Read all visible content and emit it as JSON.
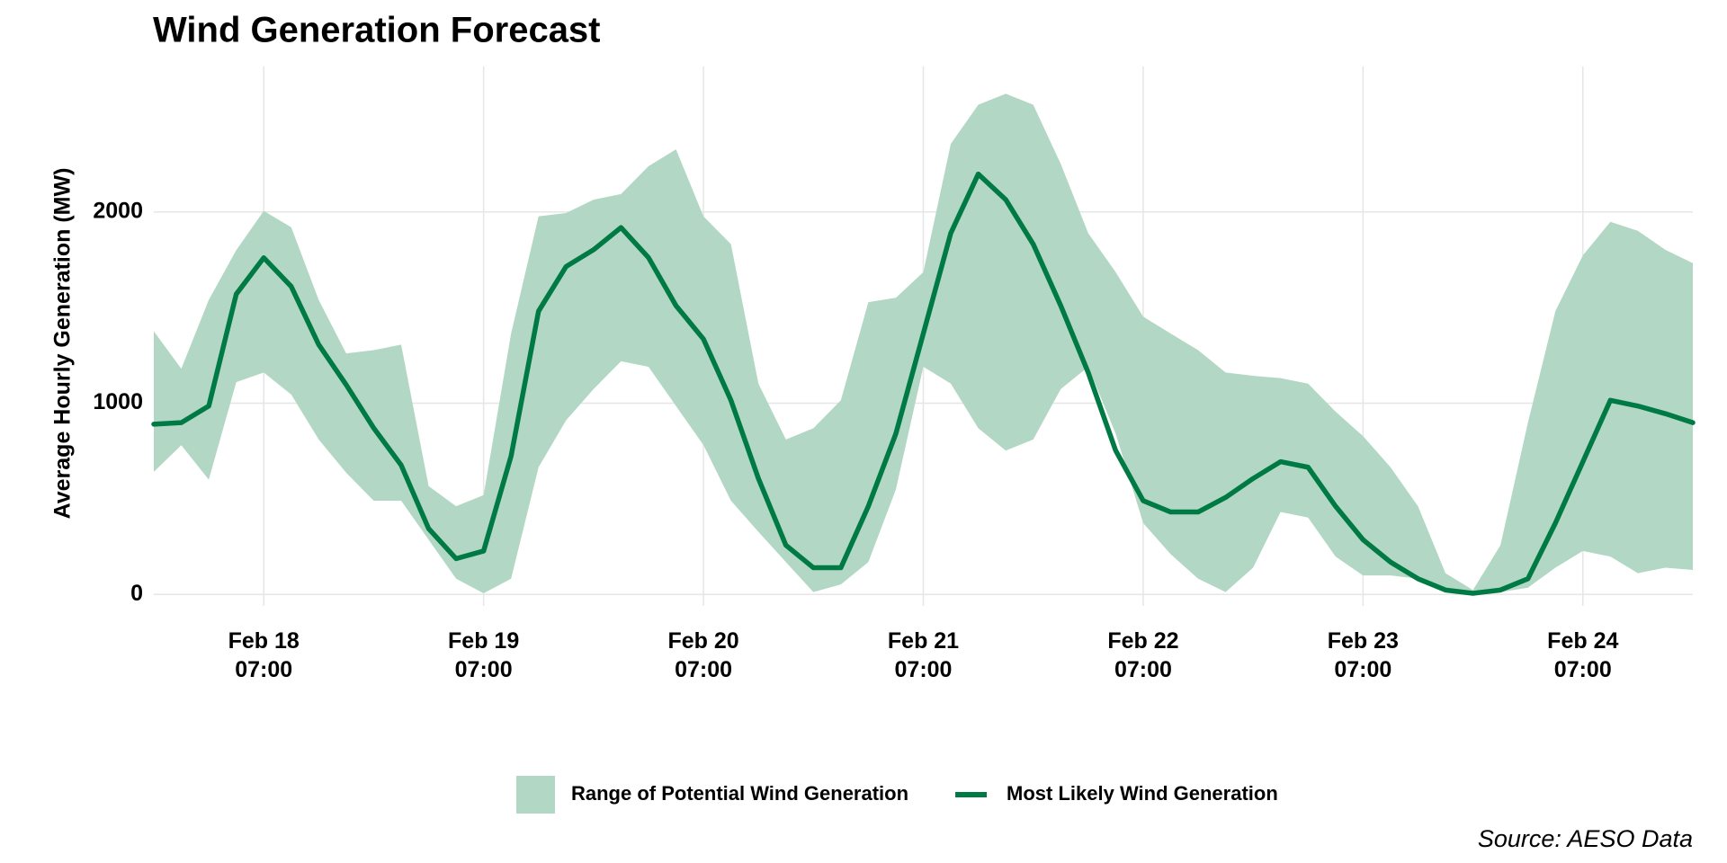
{
  "chart_data": {
    "type": "line",
    "title": "Wind Generation Forecast",
    "y_label": "Average Hourly Generation (MW)",
    "source": "Source: AESO Data",
    "x": [
      17.7917,
      17.9167,
      18.0417,
      18.1667,
      18.2917,
      18.4167,
      18.5417,
      18.6667,
      18.7917,
      18.9167,
      19.0417,
      19.1667,
      19.2917,
      19.4167,
      19.5417,
      19.6667,
      19.7917,
      19.9167,
      20.0417,
      20.1667,
      20.2917,
      20.4167,
      20.5417,
      20.6667,
      20.7917,
      20.9167,
      21.0417,
      21.1667,
      21.2917,
      21.4167,
      21.5417,
      21.6667,
      21.7917,
      21.9167,
      22.0417,
      22.1667,
      22.2917,
      22.4167,
      22.5417,
      22.6667,
      22.7917,
      22.9167,
      23.0417,
      23.1667,
      23.2917,
      23.4167,
      23.5417,
      23.6667,
      23.7917,
      23.9167,
      24.0417,
      24.1667,
      24.2917,
      24.4167,
      24.5417,
      24.6667,
      24.7917
    ],
    "series": [
      {
        "name": "Range of Potential Wind Generation",
        "color": "#b2d8c5",
        "low": [
          641,
          780,
          600,
          1110,
          1160,
          1045,
          810,
          636,
          490,
          490,
          286,
          82,
          6,
          82,
          665,
          910,
          1073,
          1219,
          1190,
          985,
          781,
          490,
          327,
          169,
          12,
          52,
          169,
          548,
          1190,
          1102,
          869,
          752,
          810,
          1073,
          1190,
          840,
          373,
          210,
          82,
          12,
          140,
          431,
          402,
          198,
          99,
          99,
          82,
          23,
          0,
          12,
          35,
          140,
          227,
          198,
          111,
          140,
          128
        ],
        "high": [
          1376,
          1180,
          1540,
          1800,
          2005,
          1920,
          1540,
          1260,
          1277,
          1306,
          566,
          461,
          519,
          1364,
          1977,
          1994,
          2064,
          2093,
          2239,
          2327,
          1977,
          1831,
          1102,
          810,
          869,
          1015,
          1528,
          1551,
          1685,
          2356,
          2560,
          2618,
          2560,
          2251,
          1889,
          1685,
          1452,
          1364,
          1277,
          1160,
          1143,
          1131,
          1102,
          956,
          828,
          665,
          461,
          111,
          23,
          257,
          898,
          1481,
          1773,
          1948,
          1901,
          1802,
          1732
        ]
      },
      {
        "name": "Most Likely Wind Generation",
        "color": "#007a45",
        "values": [
          890,
          898,
          985,
          1570,
          1760,
          1610,
          1306,
          1096,
          870,
          676,
          344,
          187,
          227,
          723,
          1481,
          1714,
          1802,
          1918,
          1761,
          1510,
          1335,
          1015,
          606,
          257,
          140,
          140,
          461,
          840,
          1364,
          1889,
          2198,
          2064,
          1831,
          1510,
          1160,
          752,
          490,
          431,
          431,
          507,
          606,
          694,
          665,
          461,
          286,
          169,
          82,
          23,
          6,
          23,
          82,
          373,
          694,
          1015,
          985,
          945,
          898
        ]
      }
    ],
    "xlim": [
      17.7917,
      24.7917
    ],
    "xticks": [
      {
        "value": 18.2917,
        "label": "Feb 18\n07:00"
      },
      {
        "value": 19.2917,
        "label": "Feb 19\n07:00"
      },
      {
        "value": 20.2917,
        "label": "Feb 20\n07:00"
      },
      {
        "value": 21.2917,
        "label": "Feb 21\n07:00"
      },
      {
        "value": 22.2917,
        "label": "Feb 22\n07:00"
      },
      {
        "value": 23.2917,
        "label": "Feb 23\n07:00"
      },
      {
        "value": 24.2917,
        "label": "Feb 24\n07:00"
      }
    ],
    "ylim": [
      -60,
      2760
    ],
    "yticks": [
      0,
      1000,
      2000
    ],
    "grid": true
  }
}
